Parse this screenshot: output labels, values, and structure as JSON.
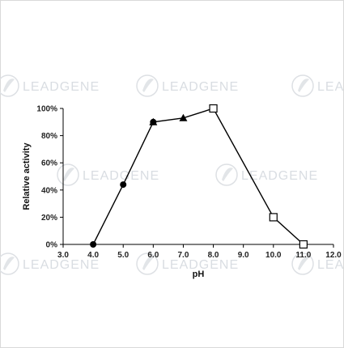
{
  "watermark": {
    "text": "LEADGENE"
  },
  "chart_data": {
    "type": "line",
    "title": "",
    "xlabel": "pH",
    "ylabel": "Relative activity",
    "xlim": [
      3.0,
      12.0
    ],
    "ylim": [
      0,
      100
    ],
    "x_ticks": [
      "3.0",
      "4.0",
      "5.0",
      "6.0",
      "7.0",
      "8.0",
      "9.0",
      "10.0",
      "11.0",
      "12.0"
    ],
    "y_ticks": [
      "0%",
      "20%",
      "40%",
      "60%",
      "80%",
      "100%"
    ],
    "grid": false,
    "legend": "none",
    "line_color": "#000000",
    "series": [
      {
        "marker": "circle",
        "x": [
          4.0,
          5.0,
          6.0
        ],
        "y": [
          0,
          44,
          90
        ]
      },
      {
        "marker": "triangle",
        "x": [
          6.0,
          7.0,
          8.0
        ],
        "y": [
          90,
          93,
          100
        ]
      },
      {
        "marker": "open-square",
        "x": [
          8.0,
          10.0,
          11.0
        ],
        "y": [
          100,
          20,
          0
        ]
      }
    ]
  }
}
